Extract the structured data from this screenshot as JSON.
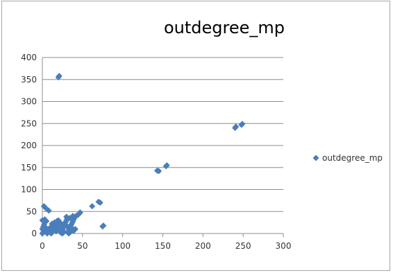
{
  "chart_data": {
    "type": "scatter",
    "title": "outdegree_mp",
    "xlabel": "",
    "ylabel": "",
    "xlim": [
      0,
      300
    ],
    "ylim": [
      0,
      400
    ],
    "x_ticks": [
      0,
      50,
      100,
      150,
      200,
      250,
      300
    ],
    "y_ticks": [
      0,
      50,
      100,
      150,
      200,
      250,
      300,
      350,
      400
    ],
    "grid": "horizontal",
    "legend_position": "right",
    "series": [
      {
        "name": "outdegree_mp",
        "color": "#4a7ebb",
        "marker": "diamond",
        "points": [
          [
            0,
            0
          ],
          [
            1,
            2
          ],
          [
            2,
            5
          ],
          [
            0,
            10
          ],
          [
            1,
            15
          ],
          [
            2,
            20
          ],
          [
            0,
            30
          ],
          [
            3,
            32
          ],
          [
            4,
            30
          ],
          [
            5,
            28
          ],
          [
            2,
            62
          ],
          [
            4,
            58
          ],
          [
            8,
            52
          ],
          [
            1,
            3
          ],
          [
            3,
            8
          ],
          [
            5,
            12
          ],
          [
            6,
            0
          ],
          [
            7,
            3
          ],
          [
            8,
            6
          ],
          [
            9,
            10
          ],
          [
            10,
            14
          ],
          [
            11,
            0
          ],
          [
            12,
            4
          ],
          [
            13,
            8
          ],
          [
            14,
            12
          ],
          [
            15,
            16
          ],
          [
            16,
            20
          ],
          [
            17,
            5
          ],
          [
            18,
            9
          ],
          [
            19,
            13
          ],
          [
            20,
            17
          ],
          [
            21,
            21
          ],
          [
            22,
            25
          ],
          [
            20,
            30
          ],
          [
            23,
            2
          ],
          [
            24,
            6
          ],
          [
            25,
            10
          ],
          [
            26,
            14
          ],
          [
            27,
            18
          ],
          [
            28,
            22
          ],
          [
            29,
            26
          ],
          [
            30,
            30
          ],
          [
            31,
            34
          ],
          [
            32,
            2
          ],
          [
            33,
            8
          ],
          [
            34,
            12
          ],
          [
            35,
            16
          ],
          [
            36,
            20
          ],
          [
            37,
            24
          ],
          [
            38,
            28
          ],
          [
            39,
            32
          ],
          [
            40,
            36
          ],
          [
            41,
            38
          ],
          [
            42,
            40
          ],
          [
            44,
            42
          ],
          [
            46,
            45
          ],
          [
            47,
            48
          ],
          [
            30,
            38
          ],
          [
            34,
            35
          ],
          [
            38,
            40
          ],
          [
            33,
            0
          ],
          [
            35,
            4
          ],
          [
            37,
            8
          ],
          [
            39,
            6
          ],
          [
            41,
            10
          ],
          [
            36,
            14
          ],
          [
            12,
            22
          ],
          [
            15,
            25
          ],
          [
            18,
            28
          ],
          [
            25,
            0
          ],
          [
            27,
            4
          ],
          [
            29,
            20
          ],
          [
            31,
            15
          ],
          [
            62,
            62
          ],
          [
            70,
            72
          ],
          [
            72,
            70
          ],
          [
            76,
            18
          ],
          [
            75,
            16
          ],
          [
            20,
            355
          ],
          [
            21,
            358
          ],
          [
            143,
            143
          ],
          [
            145,
            142
          ],
          [
            154,
            153
          ],
          [
            155,
            155
          ],
          [
            240,
            240
          ],
          [
            241,
            243
          ],
          [
            248,
            247
          ],
          [
            249,
            249
          ]
        ]
      }
    ]
  }
}
